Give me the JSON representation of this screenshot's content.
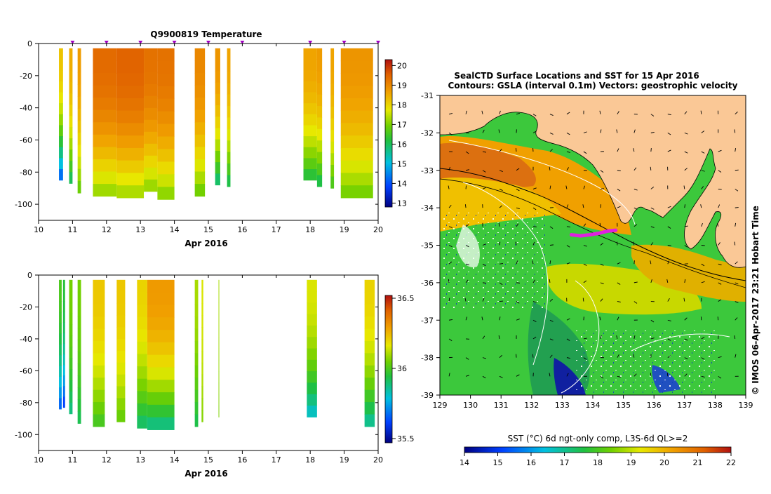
{
  "chart_data": [
    {
      "type": "heatmap",
      "title": "Q9900819  Temperature",
      "xlabel": "Apr 2016",
      "xlim": [
        10,
        20
      ],
      "ylim": [
        -110,
        0
      ],
      "xticks": [
        "10",
        "11",
        "12",
        "13",
        "14",
        "15",
        "16",
        "17",
        "18",
        "19",
        "20"
      ],
      "yticks": [
        "0",
        "-20",
        "-40",
        "-60",
        "-80",
        "-100"
      ],
      "colorbar": {
        "min": 12.8,
        "max": 20.3,
        "ticks": [
          "13",
          "14",
          "15",
          "16",
          "17",
          "18",
          "19",
          "20"
        ]
      },
      "markers_x": [
        11,
        12,
        13,
        14,
        15,
        16,
        18,
        19,
        20
      ],
      "profiles": [
        {
          "x0": 10.6,
          "x1": 10.72,
          "bottom": -85,
          "surf": 18.2,
          "deep": 13.5
        },
        {
          "x0": 10.9,
          "x1": 11.0,
          "bottom": -87,
          "surf": 18.5,
          "deep": 15.5
        },
        {
          "x0": 11.15,
          "x1": 11.25,
          "bottom": -93,
          "surf": 18.7,
          "deep": 16.5
        },
        {
          "x0": 11.6,
          "x1": 12.3,
          "bottom": -95,
          "surf": 19.4,
          "deep": 16.8
        },
        {
          "x0": 12.3,
          "x1": 13.1,
          "bottom": -96,
          "surf": 19.5,
          "deep": 16.9
        },
        {
          "x0": 13.1,
          "x1": 13.5,
          "bottom": -92,
          "surf": 19.3,
          "deep": 16.8
        },
        {
          "x0": 13.5,
          "x1": 14.0,
          "bottom": -97,
          "surf": 19.3,
          "deep": 16.7
        },
        {
          "x0": 14.6,
          "x1": 14.9,
          "bottom": -95,
          "surf": 19.0,
          "deep": 16.5
        },
        {
          "x0": 15.2,
          "x1": 15.35,
          "bottom": -88,
          "surf": 18.8,
          "deep": 15.3
        },
        {
          "x0": 15.55,
          "x1": 15.65,
          "bottom": -89,
          "surf": 18.6,
          "deep": 15.6
        },
        {
          "x0": 17.8,
          "x1": 18.2,
          "bottom": -85,
          "surf": 18.6,
          "deep": 15.8
        },
        {
          "x0": 18.2,
          "x1": 18.35,
          "bottom": -89,
          "surf": 18.7,
          "deep": 15.6
        },
        {
          "x0": 18.6,
          "x1": 18.7,
          "bottom": -90,
          "surf": 18.6,
          "deep": 16.2
        },
        {
          "x0": 18.9,
          "x1": 19.85,
          "bottom": -96,
          "surf": 18.8,
          "deep": 16.6
        }
      ]
    },
    {
      "type": "heatmap",
      "title": "",
      "xlabel": "Apr 2016",
      "xlim": [
        10,
        20
      ],
      "ylim": [
        -110,
        0
      ],
      "xticks": [
        "10",
        "11",
        "12",
        "13",
        "14",
        "15",
        "16",
        "17",
        "18",
        "19",
        "20"
      ],
      "yticks": [
        "0",
        "-20",
        "-40",
        "-60",
        "-80",
        "-100"
      ],
      "colorbar": {
        "min": 35.47,
        "max": 36.52,
        "ticks": [
          "35.5",
          "36",
          "36.5"
        ]
      },
      "profiles": [
        {
          "x0": 10.6,
          "x1": 10.68,
          "bottom": -84,
          "surf": 36.0,
          "deep": 35.6
        },
        {
          "x0": 10.72,
          "x1": 10.78,
          "bottom": -83,
          "surf": 35.95,
          "deep": 35.55
        },
        {
          "x0": 10.9,
          "x1": 11.0,
          "bottom": -87,
          "surf": 36.05,
          "deep": 35.85
        },
        {
          "x0": 11.15,
          "x1": 11.25,
          "bottom": -93,
          "surf": 36.05,
          "deep": 35.9
        },
        {
          "x0": 11.6,
          "x1": 11.95,
          "bottom": -95,
          "surf": 36.22,
          "deep": 35.95
        },
        {
          "x0": 12.3,
          "x1": 12.55,
          "bottom": -92,
          "surf": 36.22,
          "deep": 36.0
        },
        {
          "x0": 12.9,
          "x1": 13.2,
          "bottom": -96,
          "surf": 36.2,
          "deep": 35.85
        },
        {
          "x0": 13.2,
          "x1": 14.0,
          "bottom": -97,
          "surf": 36.3,
          "deep": 35.8
        },
        {
          "x0": 14.6,
          "x1": 14.7,
          "bottom": -95,
          "surf": 36.1,
          "deep": 35.9
        },
        {
          "x0": 14.8,
          "x1": 14.85,
          "bottom": -92,
          "surf": 36.15,
          "deep": 36.05
        },
        {
          "x0": 15.3,
          "x1": 15.32,
          "bottom": -89,
          "surf": 36.1,
          "deep": 36.05
        },
        {
          "x0": 17.9,
          "x1": 18.2,
          "bottom": -89,
          "surf": 36.15,
          "deep": 35.75
        },
        {
          "x0": 19.6,
          "x1": 19.9,
          "bottom": -95,
          "surf": 36.2,
          "deep": 35.8
        }
      ]
    },
    {
      "type": "heatmap",
      "title": "SealCTD Surface Locations and SST for 15 Apr 2016",
      "subtitle": "Contours: GSLA (interval 0.1m) Vectors: geostrophic velocity",
      "xlim": [
        129,
        139
      ],
      "ylim": [
        -39,
        -31
      ],
      "xticks": [
        "129",
        "130",
        "131",
        "132",
        "133",
        "134",
        "135",
        "136",
        "137",
        "138",
        "139"
      ],
      "yticks": [
        "-31",
        "-32",
        "-33",
        "-34",
        "-35",
        "-36",
        "-37",
        "-38",
        "-39"
      ],
      "colorbar_label": "SST (°C) 6d ngt-only comp, L3S-6d QL>=2",
      "colorbar": {
        "min": 14,
        "max": 22,
        "ticks": [
          "14",
          "15",
          "16",
          "17",
          "18",
          "19",
          "20",
          "21",
          "22"
        ]
      },
      "seal_track": [
        [
          133.3,
          -34.72
        ],
        [
          133.6,
          -34.75
        ],
        [
          133.9,
          -34.72
        ],
        [
          134.2,
          -34.68
        ],
        [
          134.5,
          -34.62
        ],
        [
          134.75,
          -34.6
        ]
      ],
      "credit": "© IMOS 06-Apr-2017 23:21 Hobart Time"
    }
  ]
}
